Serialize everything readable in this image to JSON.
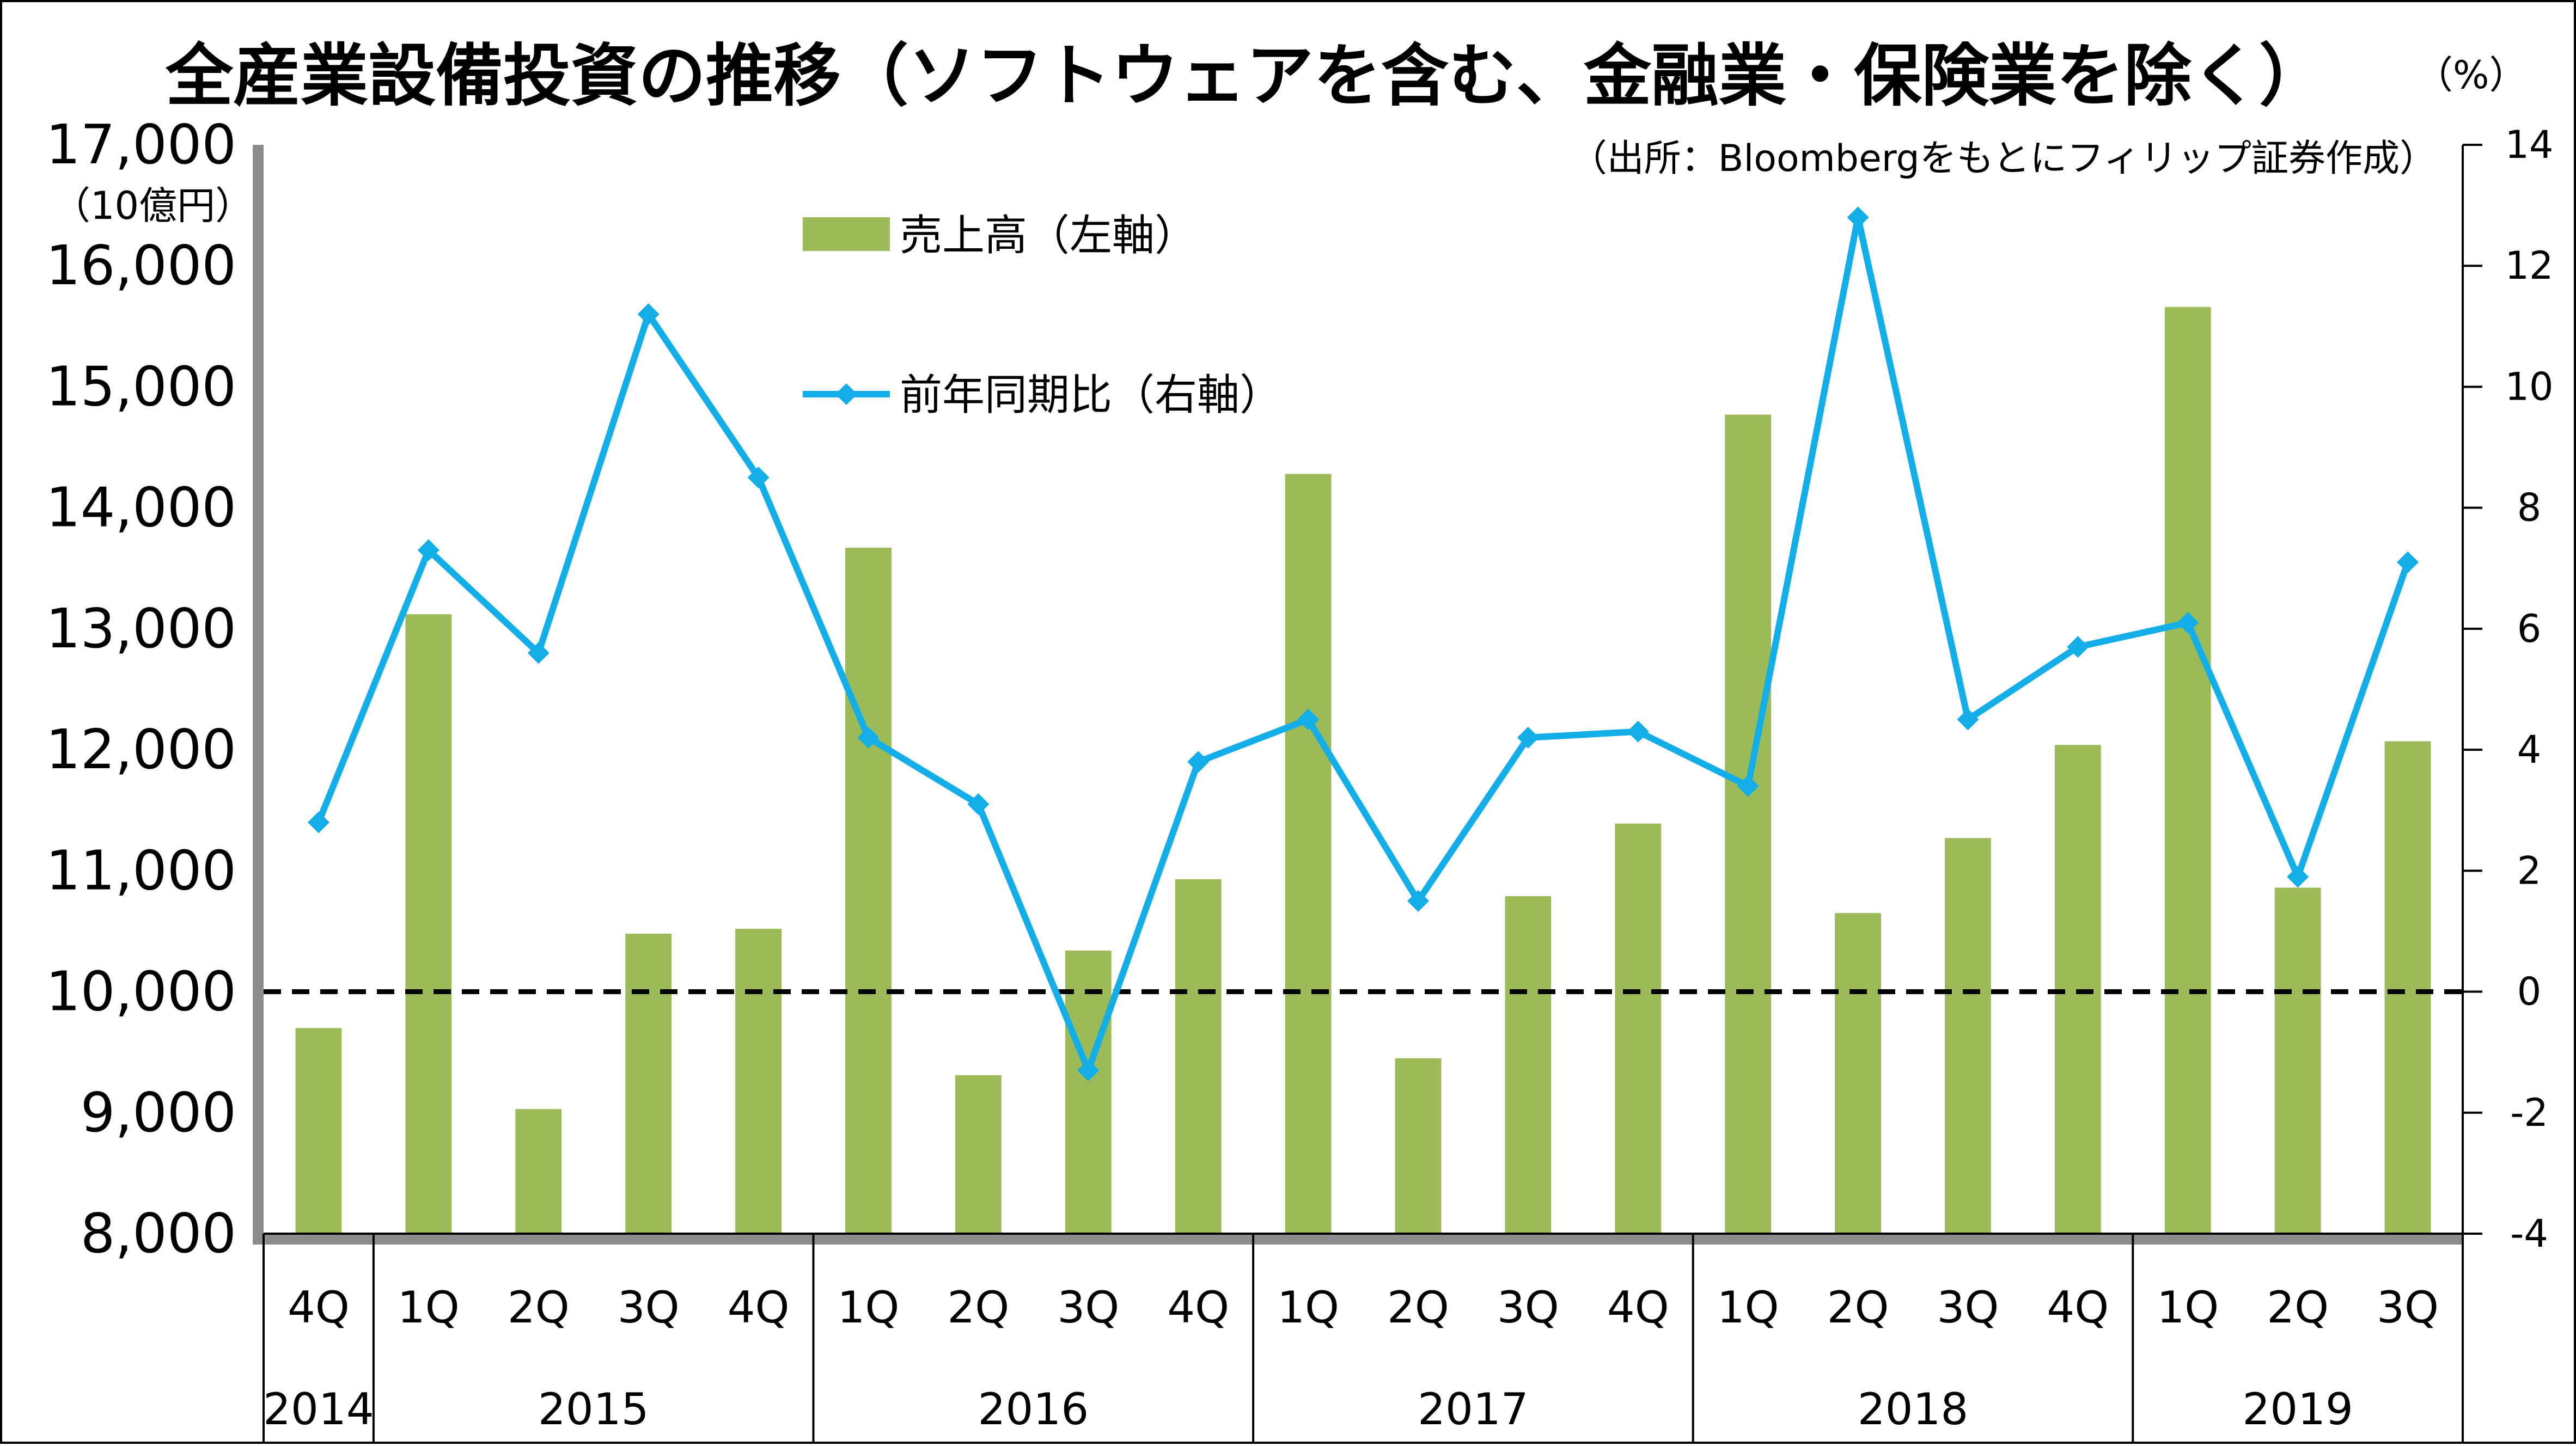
{
  "chart_data": {
    "type": "bar+line",
    "title": "全産業設備投資の推移（ソフトウェアを含む、金融業・保険業を除く）",
    "source": "（出所：Bloombergをもとにフィリップ証券作成）",
    "left_unit": "（10億円）",
    "right_unit": "（%）",
    "quarters": [
      "4Q",
      "1Q",
      "2Q",
      "3Q",
      "4Q",
      "1Q",
      "2Q",
      "3Q",
      "4Q",
      "1Q",
      "2Q",
      "3Q",
      "4Q",
      "1Q",
      "2Q",
      "3Q",
      "4Q",
      "1Q",
      "2Q",
      "3Q"
    ],
    "years": [
      {
        "label": "2014",
        "count": 1
      },
      {
        "label": "2015",
        "count": 4
      },
      {
        "label": "2016",
        "count": 4
      },
      {
        "label": "2017",
        "count": 4
      },
      {
        "label": "2018",
        "count": 4
      },
      {
        "label": "2019",
        "count": 3
      }
    ],
    "series": [
      {
        "name": "売上高（左軸）",
        "type": "bar",
        "axis": "left",
        "color": "#9BBB59",
        "values": [
          9700,
          13120,
          9030,
          10480,
          10520,
          13670,
          9310,
          10340,
          10930,
          14280,
          9450,
          10790,
          11390,
          14770,
          10650,
          11270,
          12040,
          15660,
          10860,
          12070
        ]
      },
      {
        "name": "前年同期比（右軸）",
        "type": "line",
        "axis": "right",
        "color": "#13AEE8",
        "values": [
          2.8,
          7.3,
          5.6,
          11.2,
          8.5,
          4.2,
          3.1,
          -1.3,
          3.8,
          4.5,
          1.5,
          4.2,
          4.3,
          3.4,
          12.8,
          4.5,
          5.7,
          6.1,
          1.9,
          7.1
        ]
      }
    ],
    "left_axis": {
      "min": 8000,
      "max": 17000,
      "step": 1000,
      "ticks": [
        "8,000",
        "9,000",
        "10,000",
        "11,000",
        "12,000",
        "13,000",
        "14,000",
        "15,000",
        "16,000",
        "17,000"
      ]
    },
    "right_axis": {
      "min": -4,
      "max": 14,
      "step": 2,
      "ticks": [
        "-4",
        "-2",
        "0",
        "2",
        "4",
        "6",
        "8",
        "10",
        "12",
        "14"
      ],
      "negative_color": "#FF0000"
    },
    "zero_line": {
      "value": 0,
      "style": "dashed",
      "color": "#000000"
    },
    "legend_position": "top-left",
    "plot_background": "#FFFFFF",
    "plot_shadow_color": "#8C8C8C"
  }
}
